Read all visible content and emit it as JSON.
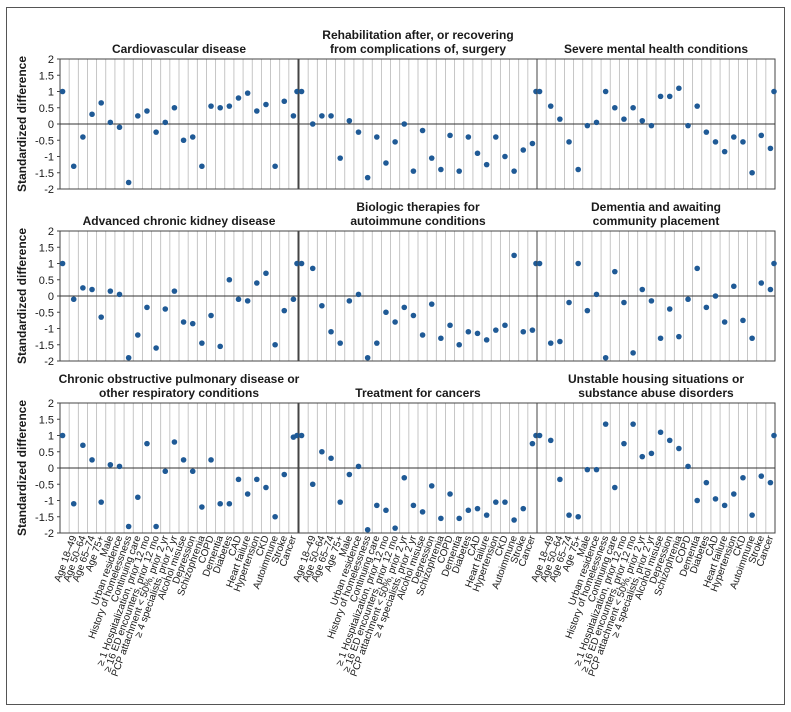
{
  "colors": {
    "point": "#1f5a96",
    "grid": "#b8b8b8",
    "axis": "#444444",
    "zero": "#333333"
  },
  "chart_data": {
    "type": "scatter",
    "ylabel": "Standardized difference",
    "ylim": [
      -2,
      2
    ],
    "yticks": [
      "2",
      "1.5",
      "1",
      "0.5",
      "0",
      "-0.5",
      "-1",
      "-1.5",
      "-2"
    ],
    "categories": [
      "Age 18–49",
      "Age 50–64",
      "Age 65–74",
      "Age 75+",
      "Male",
      "Urban residence",
      "History of homelessness",
      "Continuing care",
      "≥ 1 Hospitalization, prior 12 mo",
      "≥ 16 ED encounters, prior 12 mo",
      "PCP attachment < 50%, prior 2 yr",
      "≥ 4 specialists, prior 2 yr",
      "Alcohol misuse",
      "Depression",
      "Schizophrenia",
      "COPD",
      "Dementia",
      "Diabetes",
      "CAD",
      "Heart failure",
      "Hypertension",
      "CKD",
      "Autoimmune",
      "Stroke",
      "Cancer"
    ],
    "panels": [
      {
        "title": [
          "Cardiovascular disease"
        ],
        "ref": 1,
        "values": [
          -1.3,
          -0.4,
          0.3,
          0.65,
          0.05,
          -0.1,
          -1.8,
          0.25,
          0.4,
          -0.25,
          0.05,
          0.5,
          -0.5,
          -0.4,
          -1.3,
          0.55,
          0.5,
          0.55,
          0.8,
          0.95,
          0.4,
          0.6,
          -1.3,
          0.7,
          0.25
        ]
      },
      {
        "title": [
          "Rehabilitation after, or recovering",
          "from complications of, surgery"
        ],
        "ref": 1,
        "values": [
          0.0,
          0.25,
          0.25,
          -1.05,
          0.1,
          -0.25,
          -1.65,
          -0.4,
          -1.2,
          -0.55,
          0.0,
          -1.45,
          -0.2,
          -1.05,
          -1.4,
          -0.35,
          -1.45,
          -0.4,
          -0.9,
          -1.25,
          -0.4,
          -1.0,
          -1.45,
          -0.8,
          -0.6
        ]
      },
      {
        "title": [
          "Severe mental health conditions"
        ],
        "ref": 1,
        "values": [
          0.55,
          0.15,
          -0.55,
          -1.4,
          -0.05,
          0.05,
          1.0,
          0.5,
          0.15,
          0.5,
          0.1,
          -0.05,
          0.85,
          0.85,
          1.1,
          -0.05,
          0.55,
          -0.25,
          -0.55,
          -0.85,
          -0.4,
          -0.55,
          -1.5,
          -0.35,
          -0.75
        ]
      },
      {
        "title": [
          "Advanced chronic kidney disease"
        ],
        "ref": 1,
        "values": [
          -0.1,
          0.25,
          0.2,
          -0.65,
          0.15,
          0.05,
          -1.9,
          -1.2,
          -0.35,
          -1.6,
          -0.4,
          0.15,
          -0.8,
          -0.85,
          -1.45,
          -0.6,
          -1.55,
          0.5,
          -0.1,
          -0.15,
          0.4,
          0.7,
          -1.5,
          -0.45,
          -0.1
        ]
      },
      {
        "title": [
          "Biologic therapies for",
          "autoimmune conditions"
        ],
        "ref": 1,
        "values": [
          0.85,
          -0.3,
          -1.1,
          -1.45,
          -0.15,
          0.05,
          -1.9,
          -1.45,
          -0.5,
          -0.8,
          -0.35,
          -0.6,
          -1.2,
          -0.25,
          -1.3,
          -0.9,
          -1.5,
          -1.1,
          -1.15,
          -1.35,
          -1.05,
          -0.9,
          1.25,
          -1.1,
          -1.05
        ]
      },
      {
        "title": [
          "Dementia and awaiting",
          "community placement"
        ],
        "ref": 1,
        "values": [
          -1.45,
          -1.4,
          -0.2,
          1.0,
          -0.45,
          0.05,
          -1.9,
          0.75,
          -0.2,
          -1.75,
          0.2,
          -0.15,
          -1.3,
          -0.4,
          -1.25,
          -0.1,
          0.85,
          -0.35,
          0.0,
          -0.8,
          0.3,
          -0.75,
          -1.3,
          0.4,
          0.2
        ]
      },
      {
        "title": [
          "Chronic obstructive pulmonary disease or",
          "other respiratory conditions"
        ],
        "ref": 1,
        "values": [
          -1.1,
          0.7,
          0.25,
          -1.05,
          0.1,
          0.05,
          -1.8,
          -0.9,
          0.75,
          -1.8,
          -0.1,
          0.8,
          0.25,
          -0.1,
          -1.2,
          0.25,
          -1.1,
          -1.1,
          -0.35,
          -0.8,
          -0.35,
          -0.6,
          -1.5,
          -0.2,
          0.95
        ]
      },
      {
        "title": [
          "Treatment for cancers"
        ],
        "ref": 1,
        "values": [
          -0.5,
          0.5,
          0.3,
          -1.05,
          -0.2,
          0.05,
          -1.9,
          -1.15,
          -1.3,
          -1.85,
          -0.3,
          -1.15,
          -1.35,
          -0.55,
          -1.55,
          -0.8,
          -1.55,
          -1.3,
          -1.25,
          -1.45,
          -1.05,
          -1.05,
          -1.6,
          -1.25,
          0.75
        ]
      },
      {
        "title": [
          "Unstable housing situations or",
          "substance abuse disorders"
        ],
        "ref": 1,
        "values": [
          0.85,
          -0.35,
          -1.45,
          -1.5,
          -0.05,
          -0.05,
          1.35,
          -0.6,
          0.75,
          1.35,
          0.35,
          0.45,
          1.1,
          0.85,
          0.6,
          0.05,
          -1.0,
          -0.45,
          -0.95,
          -1.15,
          -0.8,
          -0.3,
          -1.45,
          -0.25,
          -0.45
        ]
      }
    ]
  }
}
